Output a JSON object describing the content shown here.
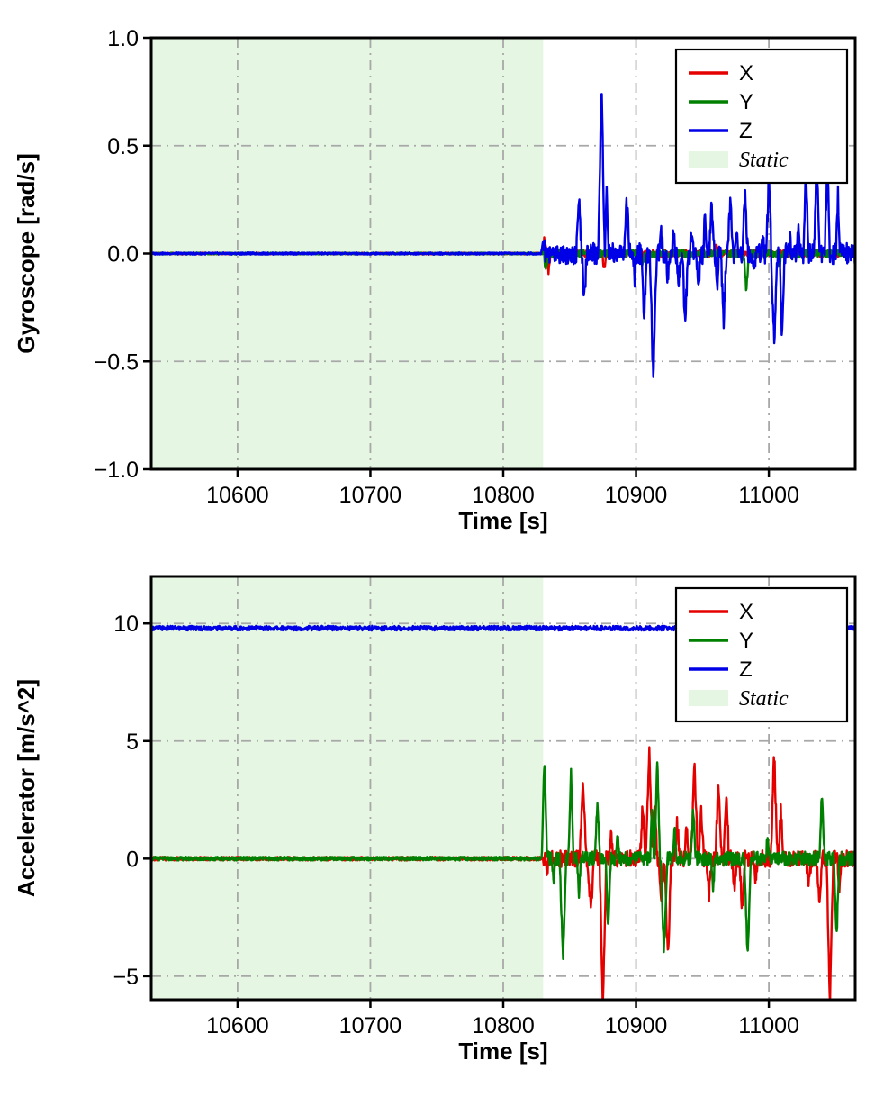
{
  "figure": {
    "background": "#ffffff"
  },
  "colors": {
    "x": "#e50000",
    "y": "#008000",
    "z": "#0000e6",
    "static_fill": "#e5f6e3",
    "grid": "#a8a8a8",
    "spine": "#000000",
    "legend_bg": "#ffffff"
  },
  "chart_data": [
    {
      "type": "line",
      "name": "gyroscope",
      "title": "",
      "xlabel": "Time [s]",
      "ylabel": "Gyroscope [rad/s]",
      "xlim": [
        10535,
        11065
      ],
      "ylim": [
        -1.0,
        1.0
      ],
      "xticks": [
        10600,
        10700,
        10800,
        10900,
        11000
      ],
      "xtick_labels": [
        "10600",
        "10700",
        "10800",
        "10900",
        "11000"
      ],
      "yticks": [
        -1.0,
        -0.5,
        0.0,
        0.5,
        1.0
      ],
      "ytick_labels": [
        "−1.0",
        "−0.5",
        "0.0",
        "0.5",
        "1.0"
      ],
      "grid": "dash-dot",
      "static_region": {
        "start": 10535,
        "end": 10830,
        "label": "Static"
      },
      "legend": {
        "position": "upper right",
        "entries": [
          {
            "label": "X",
            "kind": "line",
            "color_key": "x",
            "italic": false
          },
          {
            "label": "Y",
            "kind": "line",
            "color_key": "y",
            "italic": false
          },
          {
            "label": "Z",
            "kind": "line",
            "color_key": "z",
            "italic": false
          },
          {
            "label": "Static",
            "kind": "patch",
            "color_key": "static_fill",
            "italic": true
          }
        ]
      },
      "series": [
        {
          "name": "x",
          "color_key": "x",
          "seed": 1,
          "baseline": 0,
          "noise_static": 0.004,
          "noise_active": 0.018,
          "spikes": [
            {
              "t": 10831,
              "v": 0.07,
              "w": 3
            },
            {
              "t": 10834,
              "v": -0.09,
              "w": 3
            },
            {
              "t": 10876,
              "v": -0.07,
              "w": 3
            },
            {
              "t": 10960,
              "v": 0.04,
              "w": 3
            }
          ]
        },
        {
          "name": "y",
          "color_key": "y",
          "seed": 2,
          "baseline": 0,
          "noise_static": 0.004,
          "noise_active": 0.018,
          "spikes": [
            {
              "t": 10832,
              "v": -0.08,
              "w": 3
            },
            {
              "t": 10905,
              "v": -0.05,
              "w": 3
            },
            {
              "t": 10983,
              "v": -0.17,
              "w": 4
            },
            {
              "t": 11008,
              "v": -0.06,
              "w": 3
            }
          ]
        },
        {
          "name": "z",
          "color_key": "z",
          "seed": 3,
          "baseline": 0,
          "noise_static": 0.005,
          "noise_active": 0.05,
          "spikes": [
            {
              "t": 10830,
              "v": 0.06,
              "w": 3
            },
            {
              "t": 10857,
              "v": 0.25,
              "w": 4
            },
            {
              "t": 10861,
              "v": -0.21,
              "w": 4
            },
            {
              "t": 10874,
              "v": 0.77,
              "w": 5
            },
            {
              "t": 10878,
              "v": 0.3,
              "w": 3
            },
            {
              "t": 10893,
              "v": 0.26,
              "w": 4
            },
            {
              "t": 10899,
              "v": -0.12,
              "w": 3
            },
            {
              "t": 10906,
              "v": -0.29,
              "w": 4
            },
            {
              "t": 10913,
              "v": -0.63,
              "w": 5
            },
            {
              "t": 10919,
              "v": 0.09,
              "w": 3
            },
            {
              "t": 10924,
              "v": -0.12,
              "w": 3
            },
            {
              "t": 10928,
              "v": 0.1,
              "w": 3
            },
            {
              "t": 10932,
              "v": -0.14,
              "w": 3
            },
            {
              "t": 10937,
              "v": -0.36,
              "w": 4
            },
            {
              "t": 10942,
              "v": 0.12,
              "w": 3
            },
            {
              "t": 10947,
              "v": -0.2,
              "w": 3
            },
            {
              "t": 10952,
              "v": 0.2,
              "w": 3
            },
            {
              "t": 10957,
              "v": 0.23,
              "w": 4
            },
            {
              "t": 10961,
              "v": -0.18,
              "w": 3
            },
            {
              "t": 10966,
              "v": -0.33,
              "w": 4
            },
            {
              "t": 10971,
              "v": 0.25,
              "w": 4
            },
            {
              "t": 10976,
              "v": 0.1,
              "w": 3
            },
            {
              "t": 10982,
              "v": 0.3,
              "w": 4
            },
            {
              "t": 10989,
              "v": -0.09,
              "w": 3
            },
            {
              "t": 10995,
              "v": 0.11,
              "w": 3
            },
            {
              "t": 11000,
              "v": 0.36,
              "w": 4
            },
            {
              "t": 11004,
              "v": -0.42,
              "w": 5
            },
            {
              "t": 11010,
              "v": -0.4,
              "w": 4
            },
            {
              "t": 11016,
              "v": 0.06,
              "w": 3
            },
            {
              "t": 11022,
              "v": 0.12,
              "w": 3
            },
            {
              "t": 11028,
              "v": 0.42,
              "w": 4
            },
            {
              "t": 11036,
              "v": 0.45,
              "w": 4
            },
            {
              "t": 11044,
              "v": 0.42,
              "w": 4
            },
            {
              "t": 11052,
              "v": 0.28,
              "w": 3
            }
          ]
        }
      ]
    },
    {
      "type": "line",
      "name": "accelerator",
      "title": "",
      "xlabel": "Time [s]",
      "ylabel": "Accelerator [m/s^2]",
      "xlim": [
        10535,
        11065
      ],
      "ylim": [
        -6,
        12
      ],
      "xticks": [
        10600,
        10700,
        10800,
        10900,
        11000
      ],
      "xtick_labels": [
        "10600",
        "10700",
        "10800",
        "10900",
        "11000"
      ],
      "yticks": [
        -5,
        0,
        5,
        10
      ],
      "ytick_labels": [
        "−5",
        "0",
        "5",
        "10"
      ],
      "grid": "dash-dot",
      "static_region": {
        "start": 10535,
        "end": 10830,
        "label": "Static"
      },
      "legend": {
        "position": "upper right",
        "entries": [
          {
            "label": "X",
            "kind": "line",
            "color_key": "x",
            "italic": false
          },
          {
            "label": "Y",
            "kind": "line",
            "color_key": "y",
            "italic": false
          },
          {
            "label": "Z",
            "kind": "line",
            "color_key": "z",
            "italic": false
          },
          {
            "label": "Static",
            "kind": "patch",
            "color_key": "static_fill",
            "italic": true
          }
        ]
      },
      "series": [
        {
          "name": "x",
          "color_key": "x",
          "seed": 4,
          "baseline": 0,
          "noise_static": 0.08,
          "noise_active": 0.35,
          "spikes": [
            {
              "t": 10833,
              "v": -0.5,
              "w": 3
            },
            {
              "t": 10860,
              "v": 3.4,
              "w": 5
            },
            {
              "t": 10866,
              "v": -2.4,
              "w": 5
            },
            {
              "t": 10875,
              "v": -6.5,
              "w": 5
            },
            {
              "t": 10881,
              "v": 1.2,
              "w": 4
            },
            {
              "t": 10905,
              "v": 2.3,
              "w": 4
            },
            {
              "t": 10910,
              "v": 4.8,
              "w": 5
            },
            {
              "t": 10914,
              "v": 2.6,
              "w": 4
            },
            {
              "t": 10919,
              "v": -2.0,
              "w": 4
            },
            {
              "t": 10924,
              "v": -4.3,
              "w": 5
            },
            {
              "t": 10931,
              "v": 1.6,
              "w": 4
            },
            {
              "t": 10938,
              "v": 1.2,
              "w": 4
            },
            {
              "t": 10944,
              "v": 4.0,
              "w": 5
            },
            {
              "t": 10949,
              "v": 2.0,
              "w": 4
            },
            {
              "t": 10955,
              "v": -1.6,
              "w": 4
            },
            {
              "t": 10962,
              "v": 3.0,
              "w": 5
            },
            {
              "t": 10968,
              "v": 2.9,
              "w": 4
            },
            {
              "t": 10974,
              "v": -1.3,
              "w": 4
            },
            {
              "t": 10980,
              "v": -2.3,
              "w": 4
            },
            {
              "t": 10990,
              "v": -0.9,
              "w": 3
            },
            {
              "t": 11004,
              "v": 4.5,
              "w": 5
            },
            {
              "t": 11009,
              "v": 2.0,
              "w": 4
            },
            {
              "t": 11030,
              "v": -1.2,
              "w": 4
            },
            {
              "t": 11038,
              "v": -2.1,
              "w": 4
            },
            {
              "t": 11046,
              "v": -6.4,
              "w": 5
            },
            {
              "t": 11053,
              "v": -1.4,
              "w": 3
            }
          ]
        },
        {
          "name": "y",
          "color_key": "y",
          "seed": 5,
          "baseline": 0,
          "noise_static": 0.08,
          "noise_active": 0.3,
          "spikes": [
            {
              "t": 10831,
              "v": 4.2,
              "w": 4
            },
            {
              "t": 10838,
              "v": -1.0,
              "w": 3
            },
            {
              "t": 10845,
              "v": -4.4,
              "w": 5
            },
            {
              "t": 10851,
              "v": 3.9,
              "w": 4
            },
            {
              "t": 10857,
              "v": -1.4,
              "w": 3
            },
            {
              "t": 10871,
              "v": 2.4,
              "w": 4
            },
            {
              "t": 10879,
              "v": -2.8,
              "w": 4
            },
            {
              "t": 10886,
              "v": 1.0,
              "w": 3
            },
            {
              "t": 10912,
              "v": 2.0,
              "w": 3
            },
            {
              "t": 10916,
              "v": 4.4,
              "w": 4
            },
            {
              "t": 10921,
              "v": -4.1,
              "w": 5
            },
            {
              "t": 10929,
              "v": 1.2,
              "w": 3
            },
            {
              "t": 10943,
              "v": 2.1,
              "w": 4
            },
            {
              "t": 10958,
              "v": -1.3,
              "w": 3
            },
            {
              "t": 10984,
              "v": -4.3,
              "w": 5
            },
            {
              "t": 10999,
              "v": 0.9,
              "w": 3
            },
            {
              "t": 11040,
              "v": 2.9,
              "w": 4
            },
            {
              "t": 11051,
              "v": -3.5,
              "w": 4
            }
          ]
        },
        {
          "name": "z",
          "color_key": "z",
          "seed": 6,
          "baseline": 9.8,
          "noise_static": 0.1,
          "noise_active": 0.1,
          "spikes": []
        }
      ]
    }
  ]
}
